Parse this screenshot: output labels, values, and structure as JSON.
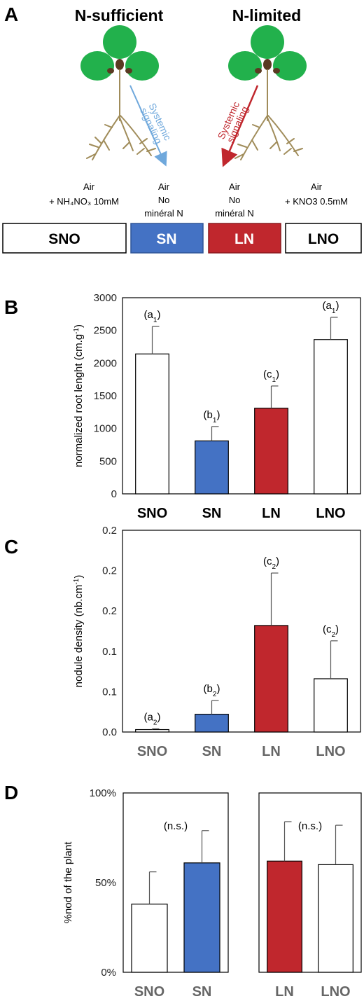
{
  "panel_a": {
    "letter": "A",
    "titles": {
      "left": "N-sufficient",
      "right": "N-limited"
    },
    "arrows": {
      "left": {
        "line1": "Systemic",
        "line2": "signaling",
        "color": "#6fa8dc"
      },
      "right": {
        "line1": "Systemic",
        "line2": "signaling",
        "color": "#c0272d"
      }
    },
    "media": {
      "sno": {
        "line1": "Air",
        "line2": "+ NH₄NO₃ 10mM"
      },
      "sn": {
        "line1": "Air",
        "line2": "No",
        "line3": "minéral N"
      },
      "ln": {
        "line1": "Air",
        "line2": "No",
        "line3": "minéral N"
      },
      "lno": {
        "line1": "Air",
        "line2": "+ KNO3 0.5mM"
      }
    },
    "boxes": {
      "sno": {
        "label": "SNO",
        "fill": "#ffffff",
        "text_color": "#000000"
      },
      "sn": {
        "label": "SN",
        "fill": "#4472c4",
        "text_color": "#ffffff"
      },
      "ln": {
        "label": "LN",
        "fill": "#c0272d",
        "text_color": "#ffffff"
      },
      "lno": {
        "label": "LNO",
        "fill": "#ffffff",
        "text_color": "#000000"
      }
    },
    "colors": {
      "leaf": "#22b14c",
      "root": "#a08c5a",
      "seed": "#5a3a22"
    }
  },
  "panel_b": {
    "letter": "B"
  },
  "panel_c": {
    "letter": "C"
  },
  "panel_d": {
    "letter": "D"
  },
  "chart_data": [
    {
      "panel": "B",
      "type": "bar",
      "categories": [
        "SNO",
        "SN",
        "LN",
        "LNO"
      ],
      "values": [
        2140,
        810,
        1310,
        2360
      ],
      "errors": [
        420,
        220,
        340,
        340
      ],
      "colors": [
        "#ffffff",
        "#4472c4",
        "#c0272d",
        "#ffffff"
      ],
      "letters": [
        {
          "base": "a",
          "sub": "1"
        },
        {
          "base": "b",
          "sub": "1"
        },
        {
          "base": "c",
          "sub": "1"
        },
        {
          "base": "a",
          "sub": "1"
        }
      ],
      "ylabel": "normalized  root lenght (cm.g",
      "ylabel_sup": "-1",
      "ylabel_end": ")",
      "yticks": [
        "0",
        "500",
        "1000",
        "1500",
        "2000",
        "2500",
        "3000"
      ],
      "ylim": [
        0,
        3000
      ],
      "category_style": "black"
    },
    {
      "panel": "C",
      "type": "bar",
      "categories": [
        "SNO",
        "SN",
        "LN",
        "LNO"
      ],
      "values": [
        0.003,
        0.022,
        0.132,
        0.066
      ],
      "errors": [
        0.001,
        0.017,
        0.065,
        0.047
      ],
      "colors": [
        "#ffffff",
        "#4472c4",
        "#c0272d",
        "#ffffff"
      ],
      "letters": [
        {
          "base": "a",
          "sub": "2"
        },
        {
          "base": "b",
          "sub": "2"
        },
        {
          "base": "c",
          "sub": "2"
        },
        {
          "base": "c",
          "sub": "2"
        }
      ],
      "ylabel": "nodule density (nb.cm",
      "ylabel_sup": "-1",
      "ylabel_end": ")",
      "yticks": [
        "0.0",
        "0.1",
        "0.1",
        "0.2",
        "0.2",
        "0.2"
      ],
      "ylim": [
        0,
        0.25
      ],
      "category_style": "gray"
    },
    {
      "panel": "D",
      "type": "bar",
      "groups": [
        {
          "categories": [
            "SNO",
            "SN"
          ],
          "values": [
            0.38,
            0.61
          ],
          "errors": [
            0.18,
            0.18
          ],
          "colors": [
            "#ffffff",
            "#4472c4"
          ],
          "annotation": "(n.s.)"
        },
        {
          "categories": [
            "LN",
            "LNO"
          ],
          "values": [
            0.62,
            0.6
          ],
          "errors": [
            0.22,
            0.22
          ],
          "colors": [
            "#c0272d",
            "#ffffff"
          ],
          "annotation": "(n.s.)"
        }
      ],
      "ylabel": "%nod of the plant",
      "yticks": [
        "0%",
        "50%",
        "100%"
      ],
      "ylim": [
        0,
        1
      ],
      "category_style": "gray"
    }
  ]
}
